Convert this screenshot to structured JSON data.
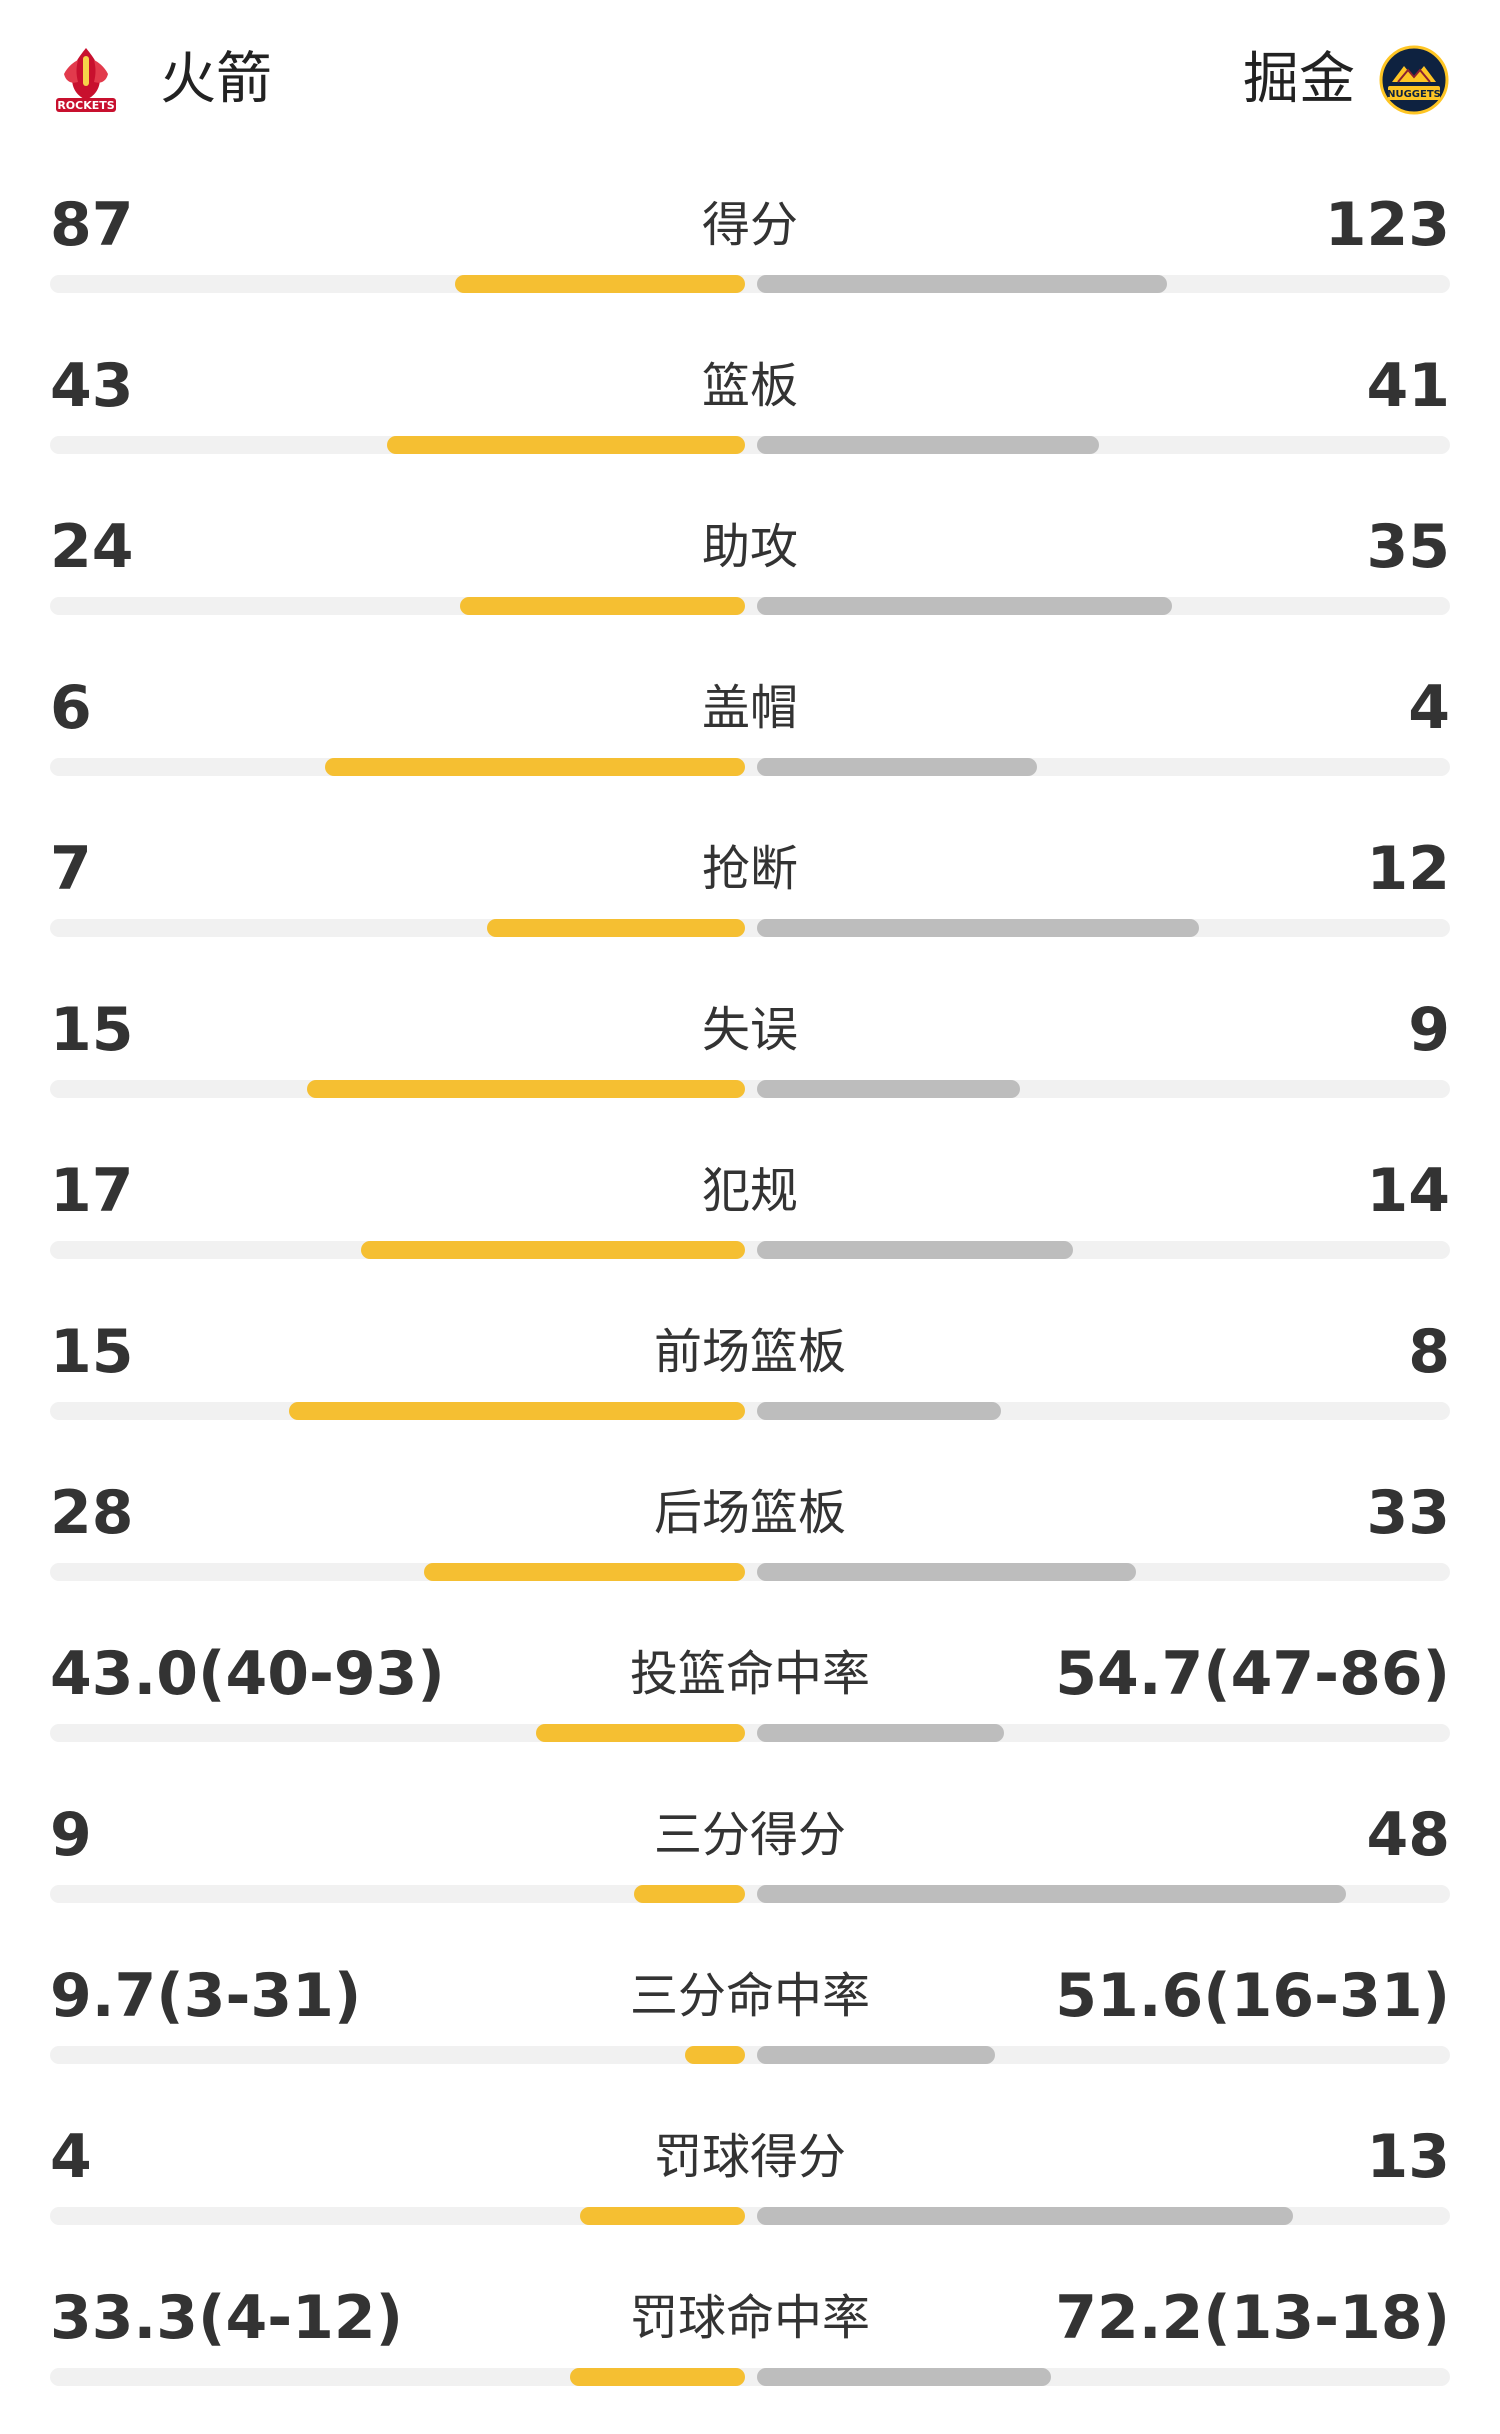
{
  "teams": {
    "home": {
      "name": "火箭",
      "logo_icon": "rockets-logo-icon",
      "logo_text": "ROCKETS",
      "color": "#f5bf32"
    },
    "away": {
      "name": "掘金",
      "logo_icon": "nuggets-logo-icon",
      "logo_text": "NUGGETS",
      "color": "#bdbdbd"
    }
  },
  "stats": [
    {
      "label": "得分",
      "home": "87",
      "away": "123",
      "home_fraction": 0.414,
      "away_fraction": 0.586
    },
    {
      "label": "篮板",
      "home": "43",
      "away": "41",
      "home_fraction": 0.512,
      "away_fraction": 0.488
    },
    {
      "label": "助攻",
      "home": "24",
      "away": "35",
      "home_fraction": 0.407,
      "away_fraction": 0.593
    },
    {
      "label": "盖帽",
      "home": "6",
      "away": "4",
      "home_fraction": 0.6,
      "away_fraction": 0.4
    },
    {
      "label": "抢断",
      "home": "7",
      "away": "12",
      "home_fraction": 0.368,
      "away_fraction": 0.632
    },
    {
      "label": "失误",
      "home": "15",
      "away": "9",
      "home_fraction": 0.625,
      "away_fraction": 0.375
    },
    {
      "label": "犯规",
      "home": "17",
      "away": "14",
      "home_fraction": 0.548,
      "away_fraction": 0.452
    },
    {
      "label": "前场篮板",
      "home": "15",
      "away": "8",
      "home_fraction": 0.652,
      "away_fraction": 0.348
    },
    {
      "label": "后场篮板",
      "home": "28",
      "away": "33",
      "home_fraction": 0.459,
      "away_fraction": 0.541
    },
    {
      "label": "投篮命中率",
      "home": "43.0(40-93)",
      "away": "54.7(47-86)",
      "home_fraction": 0.299,
      "away_fraction": 0.353
    },
    {
      "label": "三分得分",
      "home": "9",
      "away": "48",
      "home_fraction": 0.158,
      "away_fraction": 0.842
    },
    {
      "label": "三分命中率",
      "home": "9.7(3-31)",
      "away": "51.6(16-31)",
      "home_fraction": 0.086,
      "away_fraction": 0.34
    },
    {
      "label": "罚球得分",
      "home": "4",
      "away": "13",
      "home_fraction": 0.235,
      "away_fraction": 0.765
    },
    {
      "label": "罚球命中率",
      "home": "33.3(4-12)",
      "away": "72.2(13-18)",
      "home_fraction": 0.25,
      "away_fraction": 0.42
    }
  ]
}
